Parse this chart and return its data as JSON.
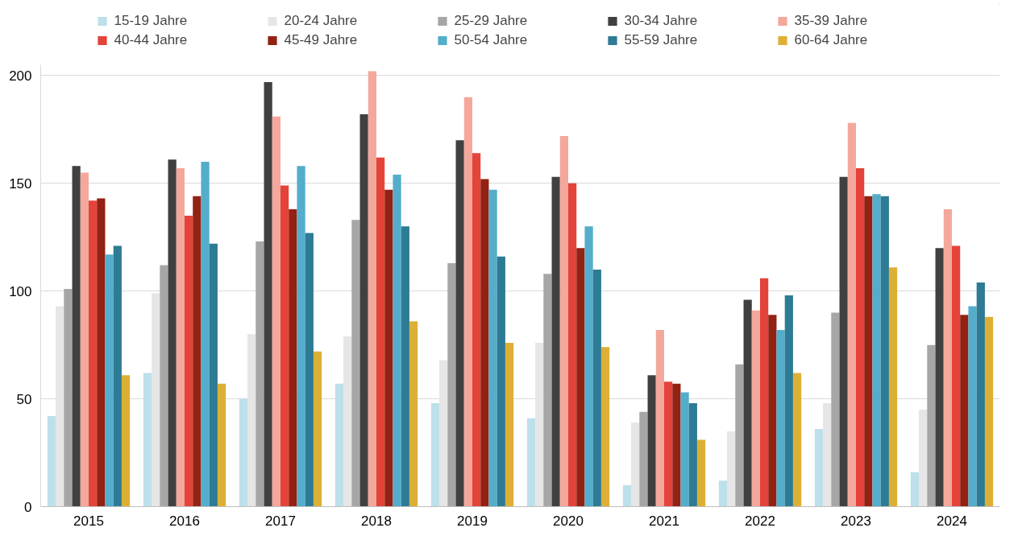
{
  "chart_data": {
    "type": "bar",
    "categories": [
      "2015",
      "2016",
      "2017",
      "2018",
      "2019",
      "2020",
      "2021",
      "2022",
      "2023",
      "2024"
    ],
    "series": [
      {
        "name": "15-19 Jahre",
        "color": "#bde0ea",
        "values": [
          42,
          62,
          50,
          57,
          48,
          41,
          10,
          12,
          36,
          16
        ]
      },
      {
        "name": "20-24 Jahre",
        "color": "#e6e6e6",
        "values": [
          93,
          99,
          80,
          79,
          68,
          76,
          39,
          35,
          48,
          45
        ]
      },
      {
        "name": "25-29 Jahre",
        "color": "#a6a6a6",
        "values": [
          101,
          112,
          123,
          133,
          113,
          108,
          44,
          66,
          90,
          75
        ]
      },
      {
        "name": "30-34 Jahre",
        "color": "#404040",
        "values": [
          158,
          161,
          197,
          182,
          170,
          153,
          61,
          96,
          153,
          120
        ]
      },
      {
        "name": "35-39 Jahre",
        "color": "#f4a89c",
        "values": [
          155,
          157,
          181,
          202,
          190,
          172,
          82,
          91,
          178,
          138
        ]
      },
      {
        "name": "40-44 Jahre",
        "color": "#e4433a",
        "values": [
          142,
          135,
          149,
          162,
          164,
          150,
          58,
          106,
          157,
          121
        ]
      },
      {
        "name": "45-49 Jahre",
        "color": "#922213",
        "values": [
          143,
          144,
          138,
          147,
          152,
          120,
          57,
          89,
          144,
          89
        ]
      },
      {
        "name": "50-54 Jahre",
        "color": "#54adcb",
        "values": [
          117,
          160,
          158,
          154,
          147,
          130,
          53,
          82,
          145,
          93
        ]
      },
      {
        "name": "55-59 Jahre",
        "color": "#2d7b94",
        "values": [
          121,
          122,
          127,
          130,
          116,
          110,
          48,
          98,
          144,
          104
        ]
      },
      {
        "name": "60-64 Jahre",
        "color": "#ddaf35",
        "values": [
          61,
          57,
          72,
          86,
          76,
          74,
          31,
          62,
          111,
          88
        ]
      }
    ],
    "ylim": [
      0,
      205
    ],
    "yticks": [
      0,
      50,
      100,
      150,
      200
    ],
    "grid": "y",
    "legend": "top"
  }
}
